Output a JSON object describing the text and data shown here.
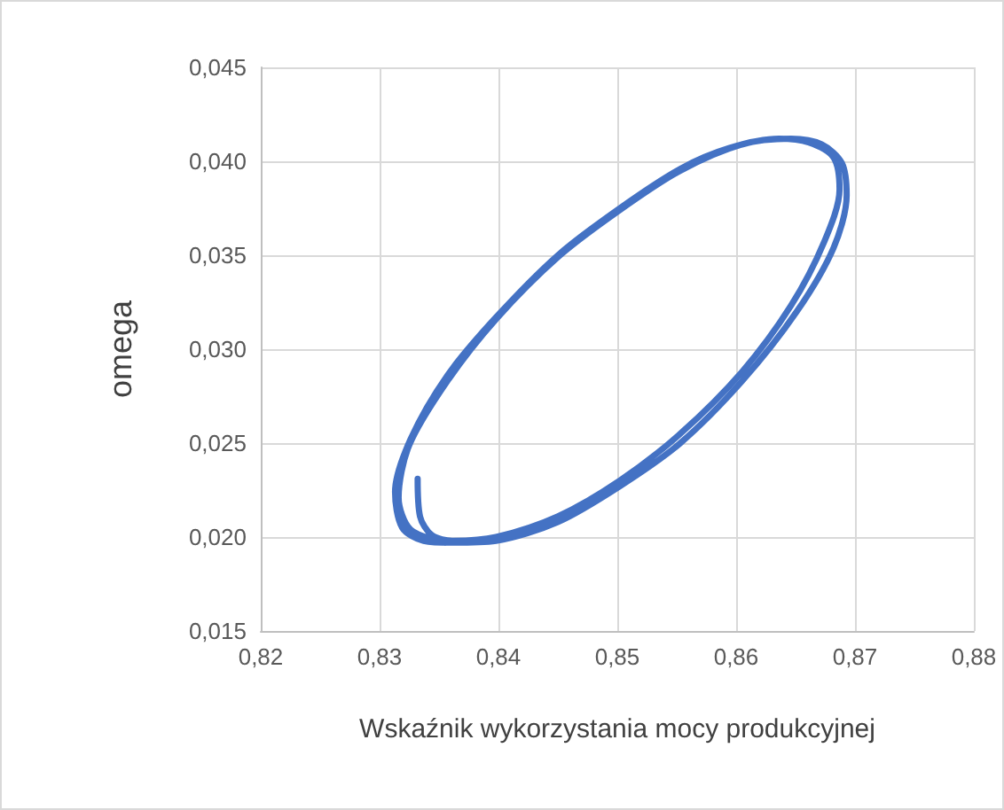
{
  "chart_data": {
    "type": "line",
    "xlabel": "Wskaźnik wykorzystania mocy produkcyjnej",
    "ylabel": "omega",
    "xlim": [
      0.82,
      0.88
    ],
    "xticks": [
      {
        "value": 0.82,
        "label": "0,82"
      },
      {
        "value": 0.83,
        "label": "0,83"
      },
      {
        "value": 0.84,
        "label": "0,84"
      },
      {
        "value": 0.85,
        "label": "0,85"
      },
      {
        "value": 0.86,
        "label": "0,86"
      },
      {
        "value": 0.87,
        "label": "0,87"
      },
      {
        "value": 0.88,
        "label": "0,88"
      }
    ],
    "ylim": [
      0.015,
      0.045
    ],
    "yticks": [
      {
        "value": 0.015,
        "label": "0,015"
      },
      {
        "value": 0.02,
        "label": "0,020"
      },
      {
        "value": 0.025,
        "label": "0,025"
      },
      {
        "value": 0.03,
        "label": "0,030"
      },
      {
        "value": 0.035,
        "label": "0,035"
      },
      {
        "value": 0.04,
        "label": "0,040"
      },
      {
        "value": 0.045,
        "label": "0,045"
      }
    ],
    "grid": true,
    "marker": "none",
    "line_style": "solid",
    "series": [
      {
        "color": "#4472c4",
        "x": [
          0.8332,
          0.8334,
          0.8344,
          0.8362,
          0.8398,
          0.845,
          0.8502,
          0.8553,
          0.8605,
          0.8646,
          0.8674,
          0.8687,
          0.8682,
          0.8661,
          0.8636,
          0.8594,
          0.8553,
          0.8502,
          0.845,
          0.8398,
          0.8357,
          0.8326,
          0.8313,
          0.8319,
          0.8337,
          0.8362,
          0.8398,
          0.845,
          0.8502,
          0.8553,
          0.8605,
          0.8651,
          0.8682,
          0.8693,
          0.8689,
          0.8672,
          0.8646,
          0.8605,
          0.8553,
          0.8502,
          0.845,
          0.8398,
          0.8357,
          0.8325,
          0.8316,
          0.8326,
          0.8355
        ],
        "values": [
          0.0231,
          0.0211,
          0.0201,
          0.0198,
          0.02,
          0.0211,
          0.023,
          0.0255,
          0.0288,
          0.0323,
          0.0357,
          0.0385,
          0.0402,
          0.041,
          0.0412,
          0.0407,
          0.0396,
          0.0375,
          0.035,
          0.0317,
          0.0286,
          0.0252,
          0.0224,
          0.0205,
          0.0198,
          0.0197,
          0.0198,
          0.0208,
          0.0227,
          0.025,
          0.0283,
          0.032,
          0.0354,
          0.0382,
          0.0399,
          0.0409,
          0.0412,
          0.0409,
          0.0395,
          0.0374,
          0.0349,
          0.0316,
          0.0283,
          0.0249,
          0.0221,
          0.0204,
          0.0197
        ]
      }
    ]
  }
}
